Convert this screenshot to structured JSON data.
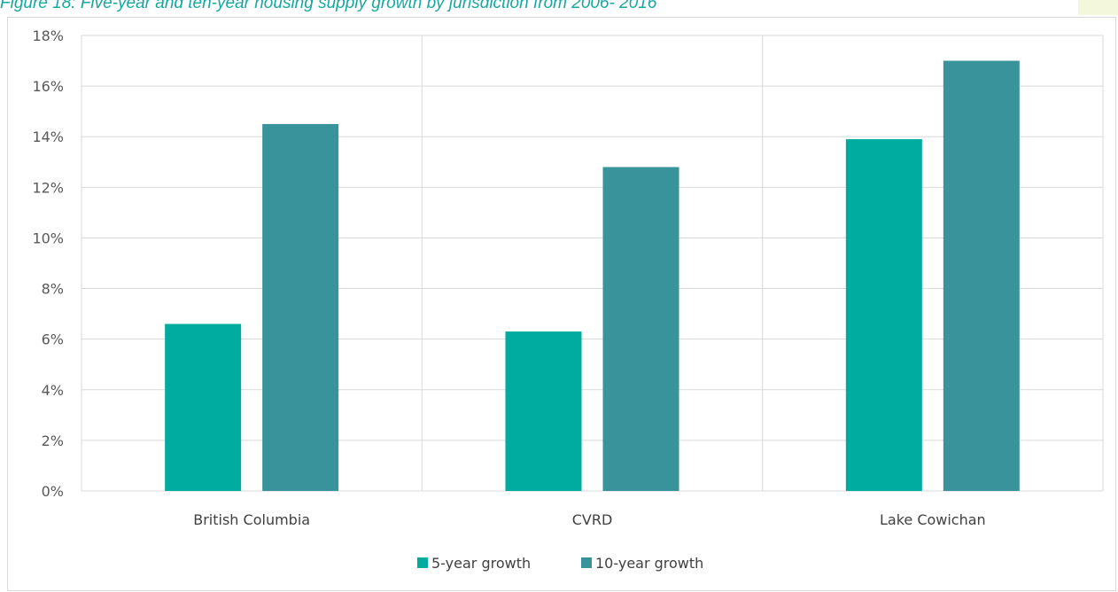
{
  "caption": "Figure 18: Five-year and ten-year housing supply growth by jurisdiction from 2006- 2016",
  "colors": {
    "series_5yr": "#00aba0",
    "series_10yr": "#38939a",
    "grid": "#d9d9d9",
    "caption": "#16a7a0"
  },
  "chart_data": {
    "type": "bar",
    "title": "",
    "xlabel": "",
    "ylabel": "",
    "categories": [
      "British Columbia",
      "CVRD",
      "Lake Cowichan"
    ],
    "series": [
      {
        "name": "5-year growth",
        "values": [
          6.6,
          6.3,
          13.9
        ]
      },
      {
        "name": "10-year growth",
        "values": [
          14.5,
          12.8,
          17.0
        ]
      }
    ],
    "ylim": [
      0,
      18
    ],
    "y_ticks": [
      "0%",
      "2%",
      "4%",
      "6%",
      "8%",
      "10%",
      "12%",
      "14%",
      "16%",
      "18%"
    ],
    "y_unit": "%",
    "grid": true,
    "legend_position": "bottom"
  }
}
